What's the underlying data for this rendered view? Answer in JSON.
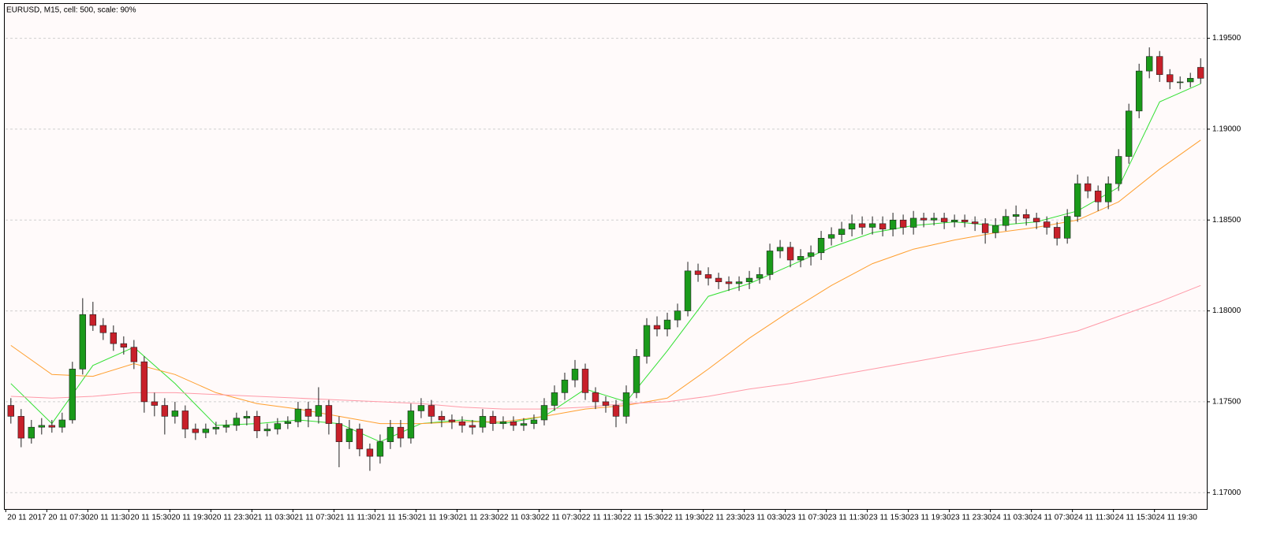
{
  "chart_data": {
    "type": "candlestick",
    "title": "EURUSD, M15, cell: 500, scale: 90%",
    "up_color": "#1a9a1a",
    "down_color": "#c8202a",
    "wick_color": "#202020",
    "grid": true,
    "ylim": [
      1.1691,
      1.19689
    ],
    "yticks": [
      {
        "value": 1.17,
        "label": "1.17000"
      },
      {
        "value": 1.175,
        "label": "1.17500"
      },
      {
        "value": 1.18,
        "label": "1.18000"
      },
      {
        "value": 1.185,
        "label": "1.18500"
      },
      {
        "value": 1.19,
        "label": "1.19000"
      },
      {
        "value": 1.195,
        "label": "1.19500"
      }
    ],
    "xlim": [
      -0.6,
      116.6
    ],
    "xticks": [
      {
        "value": -0.5,
        "label": "20 11 2017"
      },
      {
        "value": 3.5,
        "label": "20 11 07:30"
      },
      {
        "value": 7.5,
        "label": "20 11 11:30"
      },
      {
        "value": 11.5,
        "label": "20 11 15:30"
      },
      {
        "value": 15.5,
        "label": "20 11 19:30"
      },
      {
        "value": 19.5,
        "label": "20 11 23:30"
      },
      {
        "value": 23.5,
        "label": "21 11 03:30"
      },
      {
        "value": 27.5,
        "label": "21 11 07:30"
      },
      {
        "value": 31.5,
        "label": "21 11 11:30"
      },
      {
        "value": 35.5,
        "label": "21 11 15:30"
      },
      {
        "value": 39.5,
        "label": "21 11 19:30"
      },
      {
        "value": 43.5,
        "label": "21 11 23:30"
      },
      {
        "value": 47.5,
        "label": "22 11 03:30"
      },
      {
        "value": 51.5,
        "label": "22 11 07:30"
      },
      {
        "value": 55.5,
        "label": "22 11 11:30"
      },
      {
        "value": 59.5,
        "label": "22 11 15:30"
      },
      {
        "value": 63.5,
        "label": "22 11 19:30"
      },
      {
        "value": 67.5,
        "label": "22 11 23:30"
      },
      {
        "value": 71.5,
        "label": "23 11 03:30"
      },
      {
        "value": 75.5,
        "label": "23 11 07:30"
      },
      {
        "value": 79.5,
        "label": "23 11 11:30"
      },
      {
        "value": 83.5,
        "label": "23 11 15:30"
      },
      {
        "value": 87.5,
        "label": "23 11 19:30"
      },
      {
        "value": 91.5,
        "label": "23 11 23:30"
      },
      {
        "value": 95.5,
        "label": "24 11 03:30"
      },
      {
        "value": 99.5,
        "label": "24 11 07:30"
      },
      {
        "value": 103.5,
        "label": "24 11 11:30"
      },
      {
        "value": 107.5,
        "label": "24 11 15:30"
      },
      {
        "value": 111.5,
        "label": "24 11 19:30"
      }
    ],
    "open": [
      1.1748,
      1.1742,
      1.173,
      1.1736,
      1.1737,
      1.1736,
      1.174,
      1.1768,
      1.1798,
      1.1792,
      1.1788,
      1.1782,
      1.178,
      1.1772,
      1.175,
      1.1748,
      1.1742,
      1.1745,
      1.1735,
      1.1733,
      1.1735,
      1.1736,
      1.1737,
      1.1741,
      1.1742,
      1.1734,
      1.1735,
      1.1738,
      1.1739,
      1.1746,
      1.1742,
      1.1748,
      1.1738,
      1.1728,
      1.1735,
      1.1724,
      1.172,
      1.1728,
      1.1736,
      1.173,
      1.1745,
      1.1748,
      1.1742,
      1.174,
      1.1739,
      1.1737,
      1.1736,
      1.1742,
      1.1738,
      1.1739,
      1.1737,
      1.1738,
      1.174,
      1.1748,
      1.1755,
      1.1762,
      1.1768,
      1.1755,
      1.175,
      1.1748,
      1.1742,
      1.1755,
      1.1775,
      1.1792,
      1.179,
      1.1795,
      1.18,
      1.1822,
      1.182,
      1.1818,
      1.1816,
      1.1815,
      1.1816,
      1.1818,
      1.182,
      1.1833,
      1.1835,
      1.1828,
      1.183,
      1.1832,
      1.184,
      1.1842,
      1.1845,
      1.1848,
      1.1846,
      1.1848,
      1.1845,
      1.185,
      1.1846,
      1.1851,
      1.185,
      1.1851,
      1.1849,
      1.185,
      1.1849,
      1.1848,
      1.1843,
      1.1847,
      1.1852,
      1.1853,
      1.1851,
      1.1849,
      1.1846,
      1.184,
      1.1852,
      1.187,
      1.1866,
      1.186,
      1.187,
      1.1885,
      1.191,
      1.1932,
      1.194,
      1.193,
      1.1926,
      1.1926,
      1.1934
    ],
    "high": [
      1.1752,
      1.1746,
      1.174,
      1.1741,
      1.174,
      1.1744,
      1.1772,
      1.1807,
      1.1805,
      1.1796,
      1.1792,
      1.1786,
      1.1784,
      1.1775,
      1.1755,
      1.1752,
      1.175,
      1.1748,
      1.1738,
      1.1738,
      1.1739,
      1.174,
      1.1744,
      1.1745,
      1.1745,
      1.1738,
      1.1741,
      1.1742,
      1.175,
      1.175,
      1.1758,
      1.1751,
      1.1742,
      1.174,
      1.1738,
      1.1727,
      1.1732,
      1.174,
      1.174,
      1.1749,
      1.1752,
      1.1751,
      1.1745,
      1.1743,
      1.1742,
      1.174,
      1.1746,
      1.1745,
      1.1742,
      1.1742,
      1.1741,
      1.1743,
      1.1752,
      1.1759,
      1.1766,
      1.1773,
      1.1771,
      1.1758,
      1.1753,
      1.1751,
      1.1759,
      1.1779,
      1.1796,
      1.1797,
      1.1799,
      1.1804,
      1.1827,
      1.1826,
      1.1824,
      1.1821,
      1.1819,
      1.1819,
      1.1822,
      1.1824,
      1.1837,
      1.1839,
      1.1838,
      1.1834,
      1.1836,
      1.1844,
      1.1846,
      1.1849,
      1.1853,
      1.1852,
      1.1852,
      1.1852,
      1.1854,
      1.1853,
      1.1855,
      1.1854,
      1.1854,
      1.1854,
      1.1853,
      1.1853,
      1.1852,
      1.1851,
      1.1851,
      1.1856,
      1.1858,
      1.1856,
      1.1854,
      1.1852,
      1.1849,
      1.1856,
      1.1875,
      1.1874,
      1.1869,
      1.1874,
      1.1889,
      1.1914,
      1.1936,
      1.1945,
      1.1943,
      1.1933,
      1.1929,
      1.1931,
      1.1939
    ],
    "low": [
      1.1738,
      1.1725,
      1.1727,
      1.1732,
      1.1733,
      1.1733,
      1.1738,
      1.1765,
      1.1789,
      1.1784,
      1.1778,
      1.1776,
      1.1768,
      1.1744,
      1.1742,
      1.1732,
      1.1738,
      1.173,
      1.1729,
      1.173,
      1.1732,
      1.1733,
      1.1734,
      1.1737,
      1.173,
      1.1731,
      1.1732,
      1.1735,
      1.1736,
      1.1736,
      1.1738,
      1.1732,
      1.1714,
      1.1724,
      1.172,
      1.1712,
      1.1716,
      1.1724,
      1.1725,
      1.1727,
      1.1741,
      1.1738,
      1.1736,
      1.1735,
      1.1733,
      1.1732,
      1.1733,
      1.1734,
      1.1735,
      1.1734,
      1.1734,
      1.1735,
      1.1737,
      1.1745,
      1.1751,
      1.1758,
      1.1751,
      1.1746,
      1.1744,
      1.1736,
      1.1738,
      1.1752,
      1.1771,
      1.1786,
      1.1786,
      1.1791,
      1.1797,
      1.1816,
      1.1814,
      1.1812,
      1.1811,
      1.1811,
      1.1812,
      1.1815,
      1.1817,
      1.1829,
      1.1824,
      1.1824,
      1.1825,
      1.1828,
      1.1836,
      1.1838,
      1.1841,
      1.1842,
      1.1842,
      1.1841,
      1.1841,
      1.1842,
      1.1842,
      1.1846,
      1.1847,
      1.1845,
      1.1846,
      1.1846,
      1.1844,
      1.1837,
      1.184,
      1.1844,
      1.1848,
      1.1847,
      1.1845,
      1.1842,
      1.1836,
      1.1837,
      1.1849,
      1.1862,
      1.1855,
      1.1856,
      1.1866,
      1.1881,
      1.1906,
      1.1928,
      1.1926,
      1.1922,
      1.1922,
      1.1923,
      1.1925
    ],
    "close": [
      1.1742,
      1.173,
      1.1736,
      1.1737,
      1.1736,
      1.174,
      1.1768,
      1.1798,
      1.1792,
      1.1788,
      1.1782,
      1.178,
      1.1772,
      1.175,
      1.1748,
      1.1742,
      1.1745,
      1.1735,
      1.1733,
      1.1735,
      1.1736,
      1.1737,
      1.1741,
      1.1742,
      1.1734,
      1.1735,
      1.1738,
      1.1739,
      1.1746,
      1.1742,
      1.1748,
      1.1738,
      1.1728,
      1.1735,
      1.1724,
      1.172,
      1.1728,
      1.1736,
      1.173,
      1.1745,
      1.1748,
      1.1742,
      1.174,
      1.1739,
      1.1737,
      1.1736,
      1.1742,
      1.1738,
      1.1739,
      1.1737,
      1.1738,
      1.174,
      1.1748,
      1.1755,
      1.1762,
      1.1768,
      1.1755,
      1.175,
      1.1748,
      1.1742,
      1.1755,
      1.1775,
      1.1792,
      1.179,
      1.1795,
      1.18,
      1.1822,
      1.182,
      1.1818,
      1.1816,
      1.1815,
      1.1816,
      1.1818,
      1.182,
      1.1833,
      1.1835,
      1.1828,
      1.183,
      1.1832,
      1.184,
      1.1842,
      1.1845,
      1.1848,
      1.1846,
      1.1848,
      1.1845,
      1.185,
      1.1846,
      1.1851,
      1.185,
      1.1851,
      1.1849,
      1.185,
      1.1849,
      1.1848,
      1.1843,
      1.1847,
      1.1852,
      1.1853,
      1.1851,
      1.1849,
      1.1846,
      1.184,
      1.1852,
      1.187,
      1.1866,
      1.186,
      1.187,
      1.1885,
      1.191,
      1.1932,
      1.194,
      1.193,
      1.1926,
      1.1926,
      1.1928,
      1.1928
    ],
    "series": [
      {
        "color": "#33e033",
        "x": [
          0,
          4,
          8,
          12,
          16,
          20,
          24,
          28,
          32,
          36,
          40,
          44,
          48,
          52,
          56,
          60,
          64,
          68,
          72,
          76,
          80,
          84,
          88,
          92,
          96,
          100,
          104,
          108,
          112,
          116
        ],
        "values": [
          1.176,
          1.1738,
          1.177,
          1.178,
          1.176,
          1.1737,
          1.1738,
          1.174,
          1.1738,
          1.1728,
          1.1738,
          1.174,
          1.1738,
          1.1742,
          1.1757,
          1.175,
          1.1778,
          1.1808,
          1.1815,
          1.1825,
          1.1835,
          1.1843,
          1.1847,
          1.1849,
          1.1847,
          1.1849,
          1.1855,
          1.1868,
          1.1915,
          1.1925
        ]
      },
      {
        "color": "#ff9f2f",
        "x": [
          0,
          4,
          8,
          12,
          16,
          20,
          24,
          28,
          32,
          36,
          40,
          44,
          48,
          52,
          56,
          60,
          64,
          68,
          72,
          76,
          80,
          84,
          88,
          92,
          96,
          100,
          104,
          108,
          112,
          116
        ],
        "values": [
          1.1781,
          1.1765,
          1.1764,
          1.1771,
          1.1765,
          1.1755,
          1.1749,
          1.1746,
          1.1742,
          1.1738,
          1.1738,
          1.1739,
          1.1739,
          1.1742,
          1.1746,
          1.1748,
          1.1752,
          1.1768,
          1.1785,
          1.18,
          1.1814,
          1.1826,
          1.1834,
          1.1839,
          1.1843,
          1.1846,
          1.185,
          1.186,
          1.1878,
          1.1894
        ]
      },
      {
        "color": "#ff9aa8",
        "x": [
          0,
          4,
          8,
          12,
          16,
          20,
          24,
          28,
          32,
          36,
          40,
          44,
          48,
          52,
          56,
          60,
          64,
          68,
          72,
          76,
          80,
          84,
          88,
          92,
          96,
          100,
          104,
          108,
          112,
          116
        ],
        "values": [
          1.1753,
          1.1752,
          1.1753,
          1.1755,
          1.1755,
          1.1754,
          1.1753,
          1.1752,
          1.1751,
          1.175,
          1.1749,
          1.1747,
          1.1746,
          1.1746,
          1.1747,
          1.1749,
          1.175,
          1.1753,
          1.1757,
          1.176,
          1.1764,
          1.1768,
          1.1772,
          1.1776,
          1.178,
          1.1784,
          1.1789,
          1.1797,
          1.1805,
          1.1814
        ]
      }
    ]
  }
}
